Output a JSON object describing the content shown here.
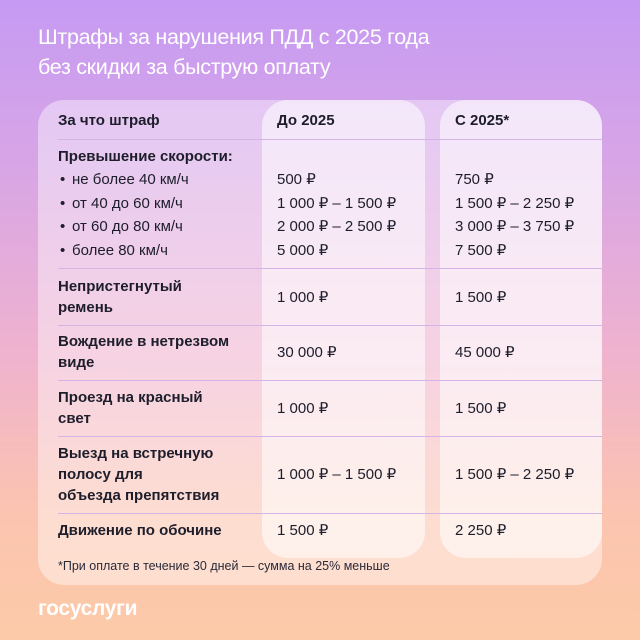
{
  "title": {
    "line1": "Штрафы за нарушения ПДД с 2025 года",
    "line2": "без скидки за быструю оплату"
  },
  "table": {
    "headers": [
      "За что штраф",
      "До 2025",
      "С 2025*"
    ],
    "speeding": {
      "label": "Превышение скорости:",
      "rows": [
        {
          "label": "не более 40 км/ч",
          "before": "500 ₽",
          "after": "750 ₽"
        },
        {
          "label": "от 40 до 60 км/ч",
          "before": "1 000 ₽ – 1 500 ₽",
          "after": "1 500 ₽ – 2 250 ₽"
        },
        {
          "label": "от 60 до 80 км/ч",
          "before": "2 000 ₽ – 2 500 ₽",
          "after": "3 000 ₽ – 3 750 ₽"
        },
        {
          "label": "более 80 км/ч",
          "before": "5 000 ₽",
          "after": "7 500 ₽"
        }
      ]
    },
    "rows": [
      {
        "label1": "Непристегнутый",
        "label2": "ремень",
        "label3": "",
        "before": "1 000 ₽",
        "after": "1 500 ₽"
      },
      {
        "label1": "Вождение в нетрезвом",
        "label2": "виде",
        "label3": "",
        "before": "30 000 ₽",
        "after": "45 000 ₽"
      },
      {
        "label1": "Проезд на красный",
        "label2": "свет",
        "label3": "",
        "before": "1 000 ₽",
        "after": "1 500 ₽"
      },
      {
        "label1": "Выезд на встречную",
        "label2": "полосу для",
        "label3": "объезда препятствия",
        "before": "1 000 ₽ – 1 500 ₽",
        "after": "1 500 ₽ – 2 250 ₽"
      },
      {
        "label1": "Движение по обочине",
        "label2": "",
        "label3": "",
        "before": "1 500 ₽",
        "after": "2 250 ₽"
      }
    ]
  },
  "footnote": "*При оплате в течение 30 дней — сумма на 25% меньше",
  "logo": "госуслуги"
}
